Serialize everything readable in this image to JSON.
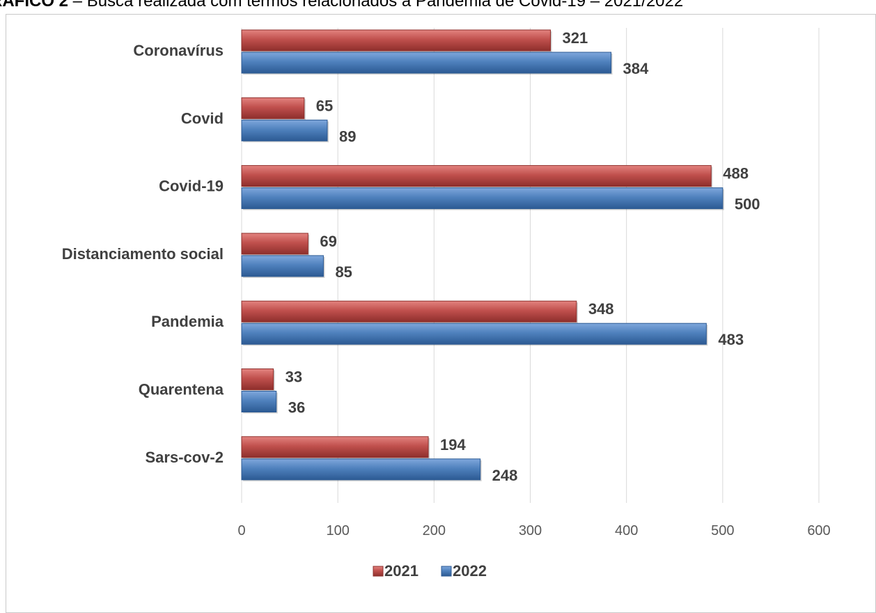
{
  "caption": {
    "label": "RÁFICO 2",
    "text": " – Busca realizada com termos relacionados à Pandemia de Covid-19 – 2021/2022"
  },
  "colors": {
    "series_2021": "#c0504d",
    "series_2022": "#4f81bd",
    "grid": "#d9d9d9",
    "text": "#404040"
  },
  "chart_data": {
    "type": "bar",
    "orientation": "horizontal",
    "categories": [
      "Coronavírus",
      "Covid",
      "Covid-19",
      "Distanciamento social",
      "Pandemia",
      "Quarentena",
      "Sars-cov-2"
    ],
    "series": [
      {
        "name": "2021",
        "values": [
          321,
          65,
          488,
          69,
          348,
          33,
          194
        ]
      },
      {
        "name": "2022",
        "values": [
          384,
          89,
          500,
          85,
          483,
          36,
          248
        ]
      }
    ],
    "xlim": [
      0,
      600
    ],
    "xticks": [
      0,
      100,
      200,
      300,
      400,
      500,
      600
    ],
    "grid": true,
    "legend": "bottom"
  }
}
